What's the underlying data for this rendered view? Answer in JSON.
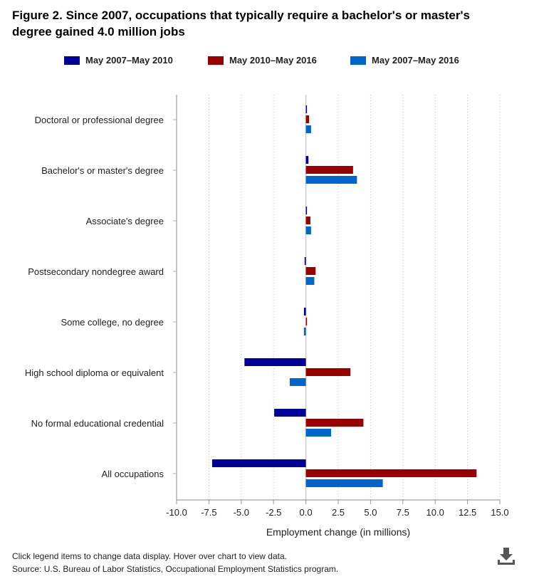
{
  "chart_data": {
    "type": "bar",
    "orientation": "horizontal",
    "title": "Figure 2. Since 2007, occupations that typically require a bachelor's or master's degree gained 4.0 million jobs",
    "xlabel": "Employment change (in millions)",
    "ylabel": "",
    "xlim": [
      -10,
      15
    ],
    "xticks": [
      "-10.0",
      "-7.5",
      "-5.0",
      "-2.5",
      "0.0",
      "2.5",
      "5.0",
      "7.5",
      "10.0",
      "12.5",
      "15.0"
    ],
    "grid": true,
    "legend_position": "top",
    "categories": [
      "Doctoral or professional degree",
      "Bachelor's or master's degree",
      "Associate's degree",
      "Postsecondary nondegree award",
      "Some college, no degree",
      "High school diploma or equivalent",
      "No formal educational credential",
      "All occupations"
    ],
    "series": [
      {
        "name": "May 2007–May 2010",
        "color": "#000099",
        "values": [
          0.05,
          0.2,
          0.05,
          -0.1,
          -0.15,
          -4.75,
          -2.45,
          -7.25
        ]
      },
      {
        "name": "May 2010–May 2016",
        "color": "#990000",
        "values": [
          0.25,
          3.65,
          0.35,
          0.75,
          0.05,
          3.45,
          4.45,
          13.2
        ]
      },
      {
        "name": "May 2007–May 2016",
        "color": "#0066cc",
        "values": [
          0.4,
          3.95,
          0.4,
          0.65,
          -0.15,
          -1.25,
          1.95,
          5.95
        ]
      }
    ]
  },
  "footer": {
    "note": "Click legend items to change data display. Hover over chart to view data.",
    "source": "Source: U.S. Bureau of Labor Statistics, Occupational Employment Statistics program."
  }
}
